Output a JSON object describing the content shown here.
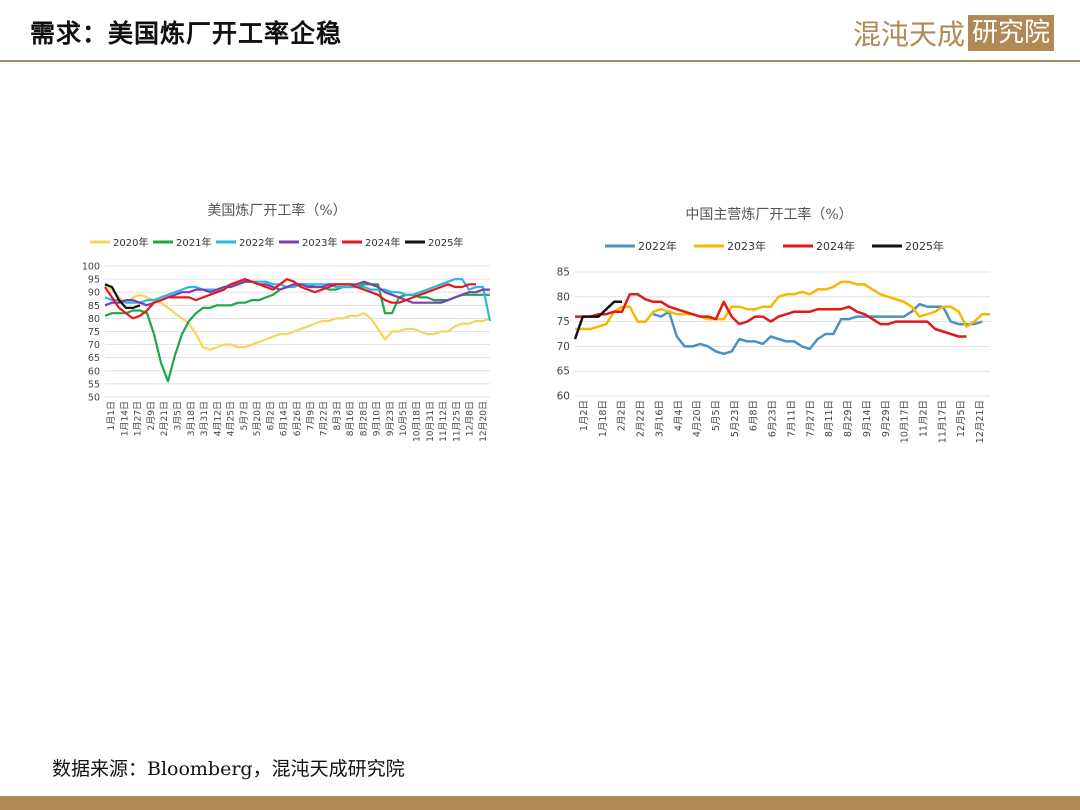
{
  "page": {
    "title": "需求：美国炼厂开工率企稳",
    "logo_text": "混沌天成",
    "logo_box_text": "研究院",
    "source": "数据来源：Bloomberg，混沌天成研究院"
  },
  "colors": {
    "2020": "#f6d35a",
    "2021": "#1fa54a",
    "2022": "#2ab7e6",
    "2022_cn": "#4a90c8",
    "2023": "#7a3fb0",
    "2023_cn": "#f5b800",
    "2024": "#e31919",
    "2025": "#111111"
  },
  "chart_data": [
    {
      "type": "line",
      "title": "美国炼厂开工率（%）",
      "ylim": [
        50,
        100
      ],
      "yticks": [
        "100",
        "95",
        "90",
        "85",
        "80",
        "75",
        "70",
        "65",
        "60",
        "55",
        "50"
      ],
      "x_labels": [
        "1月1日",
        "1月14日",
        "1月27日",
        "2月9日",
        "2月21日",
        "3月5日",
        "3月18日",
        "3月31日",
        "4月12日",
        "4月25日",
        "5月7日",
        "5月20日",
        "6月2日",
        "6月14日",
        "6月26日",
        "7月9日",
        "7月22日",
        "8月3日",
        "8月16日",
        "8月28日",
        "9月10日",
        "9月23日",
        "10月5日",
        "10月18日",
        "10月31日",
        "11月12日",
        "11月25日",
        "12月8日",
        "12月20日"
      ],
      "series": [
        {
          "name": "2020年",
          "color": "#f6d35a",
          "values": [
            93,
            91,
            88,
            86,
            88,
            89,
            88,
            87,
            86,
            84,
            82,
            80,
            78,
            74,
            69,
            68,
            69,
            70,
            70,
            69,
            69,
            70,
            71,
            72,
            73,
            74,
            74,
            75,
            76,
            77,
            78,
            79,
            79,
            80,
            80,
            81,
            81,
            82,
            80,
            76,
            72,
            75,
            75,
            76,
            76,
            75,
            74,
            74,
            75,
            75,
            77,
            78,
            78,
            79,
            79,
            80
          ]
        },
        {
          "name": "2021年",
          "color": "#1fa54a",
          "values": [
            81,
            82,
            82,
            82,
            83,
            83,
            82,
            74,
            63,
            56,
            66,
            74,
            79,
            82,
            84,
            84,
            85,
            85,
            85,
            86,
            86,
            87,
            87,
            88,
            89,
            91,
            92,
            93,
            93,
            93,
            92,
            92,
            91,
            91,
            92,
            92,
            92,
            93,
            93,
            93,
            82,
            82,
            88,
            89,
            89,
            88,
            88,
            87,
            87,
            87,
            88,
            89,
            89,
            89,
            89,
            89
          ]
        },
        {
          "name": "2022年",
          "color": "#2ab7e6",
          "values": [
            88,
            87,
            87,
            86,
            86,
            86,
            87,
            87,
            88,
            89,
            90,
            91,
            92,
            92,
            91,
            91,
            91,
            92,
            93,
            93,
            94,
            94,
            94,
            94,
            93,
            93,
            92,
            92,
            93,
            93,
            93,
            93,
            93,
            92,
            92,
            92,
            92,
            92,
            91,
            91,
            91,
            90,
            90,
            89,
            89,
            90,
            91,
            92,
            93,
            94,
            95,
            95,
            91,
            92,
            92,
            79
          ]
        },
        {
          "name": "2023年",
          "color": "#7a3fb0",
          "values": [
            85,
            86,
            86,
            87,
            87,
            86,
            85,
            86,
            87,
            88,
            89,
            90,
            90,
            91,
            91,
            90,
            91,
            92,
            92,
            93,
            94,
            94,
            93,
            93,
            92,
            91,
            92,
            93,
            93,
            92,
            92,
            92,
            93,
            93,
            93,
            93,
            93,
            94,
            93,
            92,
            90,
            89,
            88,
            87,
            86,
            86,
            86,
            86,
            86,
            87,
            88,
            89,
            90,
            90,
            91,
            91
          ]
        },
        {
          "name": "2024年",
          "color": "#e31919",
          "values": [
            92,
            88,
            84,
            82,
            80,
            81,
            83,
            86,
            87,
            88,
            88,
            88,
            88,
            87,
            88,
            89,
            90,
            91,
            93,
            94,
            95,
            94,
            93,
            92,
            91,
            93,
            95,
            94,
            92,
            91,
            90,
            91,
            92,
            93,
            93,
            93,
            92,
            91,
            90,
            89,
            87,
            86,
            86,
            87,
            88,
            89,
            90,
            91,
            92,
            93,
            92,
            92,
            93,
            93
          ]
        },
        {
          "name": "2025年",
          "color": "#111111",
          "values": [
            93,
            92,
            87,
            84,
            84,
            85
          ]
        }
      ]
    },
    {
      "type": "line",
      "title": "中国主营炼厂开工率（%）",
      "ylim": [
        60,
        85
      ],
      "yticks": [
        "85",
        "80",
        "75",
        "70",
        "65",
        "60"
      ],
      "x_labels": [
        "1月2日",
        "1月18日",
        "2月2日",
        "2月22日",
        "3月16日",
        "4月4日",
        "4月20日",
        "5月5日",
        "5月23日",
        "6月8日",
        "6月23日",
        "7月11日",
        "7月27日",
        "8月11日",
        "8月29日",
        "9月14日",
        "9月29日",
        "10月17日",
        "11月2日",
        "11月17日",
        "12月5日",
        "12月21日"
      ],
      "series": [
        {
          "name": "2022年",
          "color": "#4a90c8",
          "values": [
            null,
            null,
            null,
            null,
            null,
            null,
            null,
            null,
            null,
            null,
            76.5,
            76,
            77,
            72,
            70,
            70,
            70.5,
            70,
            69,
            68.5,
            69,
            71.5,
            71,
            71,
            70.5,
            72,
            71.5,
            71,
            71,
            70,
            69.5,
            71.5,
            72.5,
            72.5,
            75.5,
            75.5,
            76,
            76,
            76,
            76,
            76,
            76,
            76,
            77,
            78.5,
            78,
            78,
            78,
            75,
            74.5,
            74.5,
            74.5,
            75
          ]
        },
        {
          "name": "2023年",
          "color": "#f5b800",
          "values": [
            73.5,
            73.5,
            73.5,
            74,
            74.5,
            77,
            78,
            78,
            75,
            75,
            77,
            77.5,
            77,
            76.5,
            76.5,
            76.5,
            76,
            75.5,
            75.5,
            75.5,
            78,
            78,
            77.5,
            77.5,
            78,
            78,
            80,
            80.5,
            80.5,
            81,
            80.5,
            81.5,
            81.5,
            82,
            83,
            83,
            82.5,
            82.5,
            81.5,
            80.5,
            80,
            79.5,
            79,
            78,
            76,
            76.5,
            77,
            78,
            78,
            77,
            74,
            75,
            76.5,
            76.5
          ]
        },
        {
          "name": "2024年",
          "color": "#e31919",
          "values": [
            76,
            76,
            76,
            76.5,
            76.5,
            77,
            77,
            80.5,
            80.5,
            79.5,
            79,
            79,
            78,
            77.5,
            77,
            76.5,
            76,
            76,
            75.5,
            79,
            76,
            74.5,
            75,
            76,
            76,
            75,
            76,
            76.5,
            77,
            77,
            77,
            77.5,
            77.5,
            77.5,
            77.5,
            78,
            77,
            76.5,
            75.5,
            74.5,
            74.5,
            75,
            75,
            75,
            75,
            75,
            73.5,
            73,
            72.5,
            72,
            72
          ]
        },
        {
          "name": "2025年",
          "color": "#111111",
          "values": [
            71.5,
            76,
            76,
            76,
            77.5,
            79,
            79
          ]
        }
      ]
    }
  ]
}
